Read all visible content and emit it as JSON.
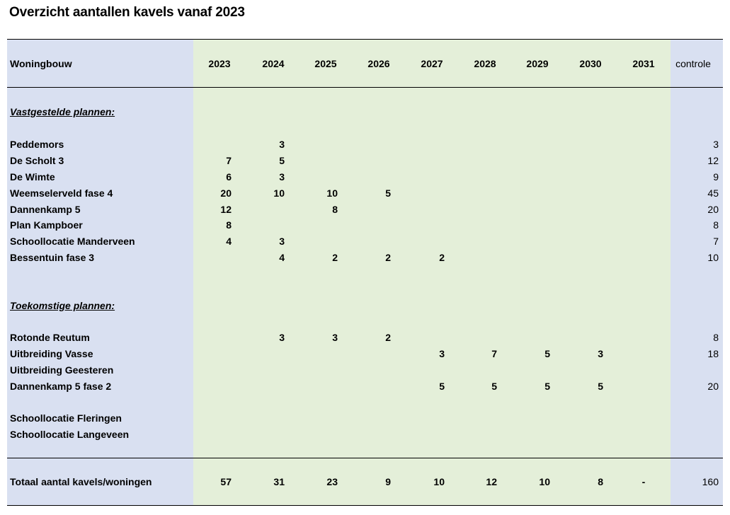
{
  "title": "Overzicht aantallen kavels vanaf 2023",
  "table": {
    "header": {
      "label": "Woningbouw",
      "years": [
        "2023",
        "2024",
        "2025",
        "2026",
        "2027",
        "2028",
        "2029",
        "2030",
        "2031"
      ],
      "control": "controle"
    },
    "rows": [
      {
        "type": "section",
        "label": "Vastgestelde plannen:"
      },
      {
        "type": "data",
        "label": "Peddemors",
        "values": [
          "",
          "3",
          "",
          "",
          "",
          "",
          "",
          "",
          ""
        ],
        "control": "3"
      },
      {
        "type": "data",
        "label": "De Scholt 3",
        "values": [
          "7",
          "5",
          "",
          "",
          "",
          "",
          "",
          "",
          ""
        ],
        "control": "12"
      },
      {
        "type": "data",
        "label": "De Wimte",
        "values": [
          "6",
          "3",
          "",
          "",
          "",
          "",
          "",
          "",
          ""
        ],
        "control": "9"
      },
      {
        "type": "data",
        "label": "Weemselerveld fase 4",
        "values": [
          "20",
          "10",
          "10",
          "5",
          "",
          "",
          "",
          "",
          ""
        ],
        "control": "45"
      },
      {
        "type": "data",
        "label": "Dannenkamp 5",
        "values": [
          "12",
          "",
          "8",
          "",
          "",
          "",
          "",
          "",
          ""
        ],
        "control": "20"
      },
      {
        "type": "data",
        "label": "Plan Kampboer",
        "values": [
          "8",
          "",
          "",
          "",
          "",
          "",
          "",
          "",
          ""
        ],
        "control": "8"
      },
      {
        "type": "data",
        "label": "Schoollocatie Manderveen",
        "values": [
          "4",
          "3",
          "",
          "",
          "",
          "",
          "",
          "",
          ""
        ],
        "control": "7"
      },
      {
        "type": "data",
        "label": "Bessentuin fase 3",
        "values": [
          "",
          "4",
          "2",
          "2",
          "2",
          "",
          "",
          "",
          ""
        ],
        "control": "10"
      },
      {
        "type": "section",
        "label": "Toekomstige plannen:"
      },
      {
        "type": "data",
        "label": "Rotonde Reutum",
        "values": [
          "",
          "3",
          "3",
          "2",
          "",
          "",
          "",
          "",
          ""
        ],
        "control": "8"
      },
      {
        "type": "data",
        "label": "Uitbreiding Vasse",
        "values": [
          "",
          "",
          "",
          "",
          "3",
          "7",
          "5",
          "3",
          ""
        ],
        "control": "18"
      },
      {
        "type": "data",
        "label": "Uitbreiding Geesteren",
        "values": [
          "",
          "",
          "",
          "",
          "",
          "",
          "",
          "",
          ""
        ],
        "control": ""
      },
      {
        "type": "data",
        "label": "Dannenkamp 5 fase 2",
        "values": [
          "",
          "",
          "",
          "",
          "5",
          "5",
          "5",
          "5",
          ""
        ],
        "control": "20"
      },
      {
        "type": "data",
        "label": "Schoollocatie Fleringen",
        "values": [
          "",
          "",
          "",
          "",
          "",
          "",
          "",
          "",
          ""
        ],
        "control": ""
      },
      {
        "type": "data",
        "label": "Schoollocatie Langeveen",
        "values": [
          "",
          "",
          "",
          "",
          "",
          "",
          "",
          "",
          ""
        ],
        "control": ""
      }
    ],
    "total": {
      "label": "Totaal aantal kavels/woningen",
      "values": [
        "57",
        "31",
        "23",
        "9",
        "10",
        "12",
        "10",
        "8",
        "-"
      ],
      "control": "160"
    }
  }
}
